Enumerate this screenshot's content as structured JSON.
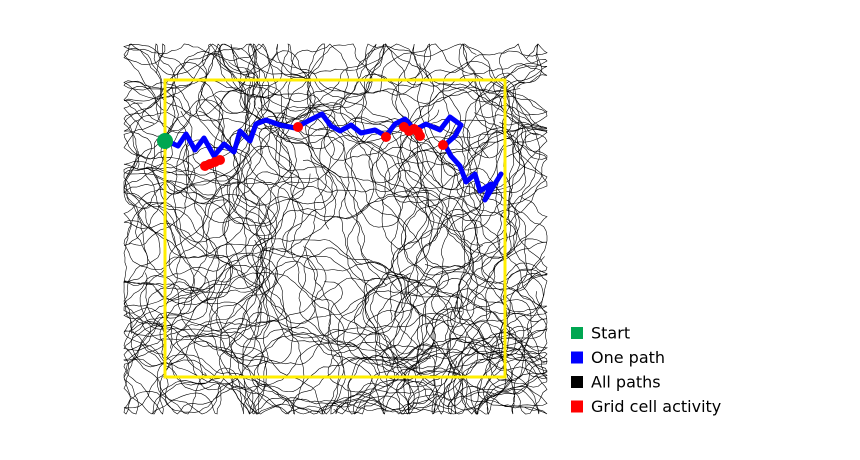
{
  "legend": {
    "items": [
      {
        "label": "Start",
        "color": "#00a651"
      },
      {
        "label": "One path",
        "color": "#0000ff"
      },
      {
        "label": "All paths",
        "color": "#000000"
      },
      {
        "label": "Grid cell activity",
        "color": "#ff0000"
      }
    ]
  }
}
